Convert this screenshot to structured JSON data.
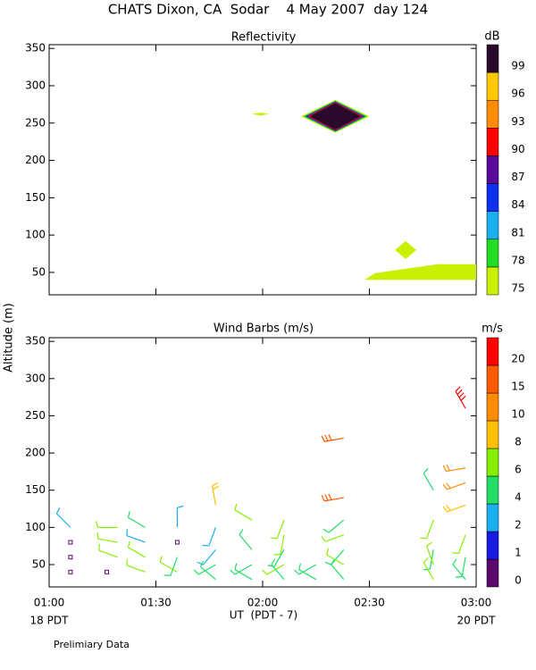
{
  "title": "CHATS Dixon, CA  Sodar    4 May 2007  day 124",
  "footer": "Prelimiary Data",
  "chart_data": [
    {
      "type": "contour",
      "title": "Reflectivity",
      "colorbar": {
        "unit": "dB",
        "levels": [
          75,
          78,
          81,
          84,
          87,
          90,
          93,
          96,
          99
        ],
        "colors": [
          "#c8f000",
          "#22dd22",
          "#18b0f0",
          "#1030f0",
          "#5a0a9a",
          "#ff0000",
          "#ff8c00",
          "#ffc800",
          "#2a0a2a"
        ]
      },
      "regions": [
        {
          "level": 75,
          "x": [
            2.18,
            2.34,
            2.5,
            2.34
          ],
          "y": [
            259,
            281,
            259,
            237
          ]
        },
        {
          "level": 78,
          "x": [
            2.19,
            2.34,
            2.49,
            2.34
          ],
          "y": [
            259,
            280,
            259,
            238
          ]
        },
        {
          "level": 84,
          "x": [
            2.2,
            2.34,
            2.48,
            2.34
          ],
          "y": [
            259,
            279,
            259,
            239
          ]
        },
        {
          "level": 90,
          "x": [
            2.21,
            2.34,
            2.47,
            2.34
          ],
          "y": [
            259,
            278,
            259,
            240
          ]
        },
        {
          "level": 99,
          "x": [
            2.22,
            2.34,
            2.46,
            2.34
          ],
          "y": [
            259,
            277,
            259,
            241
          ]
        },
        {
          "level": 75,
          "x": [
            1.95,
            1.99,
            2.03,
            1.99
          ],
          "y": [
            262,
            264,
            262,
            260
          ]
        },
        {
          "level": 75,
          "x": [
            2.62,
            2.67,
            2.72,
            2.67
          ],
          "y": [
            80,
            92,
            80,
            68
          ]
        },
        {
          "level": 75,
          "x": [
            2.477,
            2.527,
            2.82,
            3.0,
            3.0
          ],
          "y": [
            40,
            49,
            61,
            61,
            40
          ]
        }
      ],
      "xlim": [
        1,
        3
      ],
      "xticks": [
        1,
        1.5,
        2,
        2.5,
        3
      ],
      "ylim": [
        20,
        355
      ],
      "yticks": [
        50,
        100,
        150,
        200,
        250,
        300,
        350
      ]
    },
    {
      "type": "barbs",
      "title": "Wind Barbs (m/s)",
      "ylabel": "Altitude (m)",
      "xlabel": "UT  (PDT - 7)",
      "x_start_label": "18 PDT",
      "x_end_label": "20 PDT",
      "colorbar": {
        "unit": "m/s",
        "levels": [
          0,
          1,
          2,
          4,
          6,
          8,
          10,
          15,
          20
        ],
        "colors": [
          "#5a0a6a",
          "#1a1ae0",
          "#1ab0f0",
          "#22dd66",
          "#88ee00",
          "#ffc000",
          "#ff8c00",
          "#ff5a00",
          "#ff0000"
        ]
      },
      "barbs": {
        "x": [
          1.1,
          1.1,
          1.1,
          1.1,
          1.27,
          1.32,
          1.32,
          1.32,
          1.45,
          1.45,
          1.45,
          1.45,
          1.6,
          1.6,
          1.6,
          1.6,
          1.78,
          1.78,
          1.78,
          1.78,
          1.78,
          1.95,
          1.95,
          1.95,
          1.95,
          2.1,
          2.1,
          2.1,
          2.1,
          2.1,
          2.25,
          2.25,
          2.38,
          2.38,
          2.38,
          2.38,
          2.38,
          2.38,
          2.38,
          2.8,
          2.8,
          2.8,
          2.8,
          2.8,
          2.95,
          2.95,
          2.95,
          2.95,
          2.95,
          2.95,
          2.95
        ],
        "y": [
          100,
          80,
          60,
          40,
          40,
          100,
          80,
          60,
          100,
          80,
          60,
          40,
          100,
          80,
          60,
          40,
          130,
          100,
          70,
          50,
          30,
          110,
          70,
          50,
          30,
          110,
          90,
          70,
          50,
          30,
          50,
          30,
          220,
          140,
          110,
          90,
          70,
          50,
          30,
          150,
          110,
          70,
          50,
          30,
          260,
          180,
          160,
          130,
          90,
          60,
          30
        ],
        "speed": [
          3,
          0.5,
          0.5,
          0.5,
          0.5,
          6,
          6,
          6,
          4,
          3,
          6,
          6,
          2,
          0.5,
          4,
          6,
          8,
          3,
          3,
          4,
          4,
          6,
          4,
          4,
          4,
          6,
          6,
          4,
          6,
          4,
          4,
          4,
          15,
          15,
          4,
          6,
          4,
          6,
          4,
          4,
          6,
          4,
          6,
          6,
          20,
          10,
          10,
          8,
          6,
          4,
          4
        ],
        "direction": [
          315,
          0,
          0,
          0,
          0,
          270,
          280,
          290,
          300,
          290,
          300,
          290,
          0,
          0,
          200,
          300,
          350,
          200,
          220,
          240,
          310,
          300,
          320,
          240,
          300,
          200,
          190,
          210,
          240,
          320,
          240,
          300,
          260,
          260,
          230,
          250,
          220,
          300,
          320,
          330,
          200,
          190,
          340,
          330,
          330,
          260,
          250,
          250,
          200,
          190,
          320
        ]
      },
      "xlim": [
        1,
        3
      ],
      "xticks": [
        {
          "value": 1,
          "label": "01:00"
        },
        {
          "value": 1.5,
          "label": "01:30"
        },
        {
          "value": 2,
          "label": "02:00"
        },
        {
          "value": 2.5,
          "label": "02:30"
        },
        {
          "value": 3,
          "label": "03:00"
        }
      ],
      "ylim": [
        20,
        355
      ],
      "yticks": [
        50,
        100,
        150,
        200,
        250,
        300,
        350
      ]
    }
  ]
}
